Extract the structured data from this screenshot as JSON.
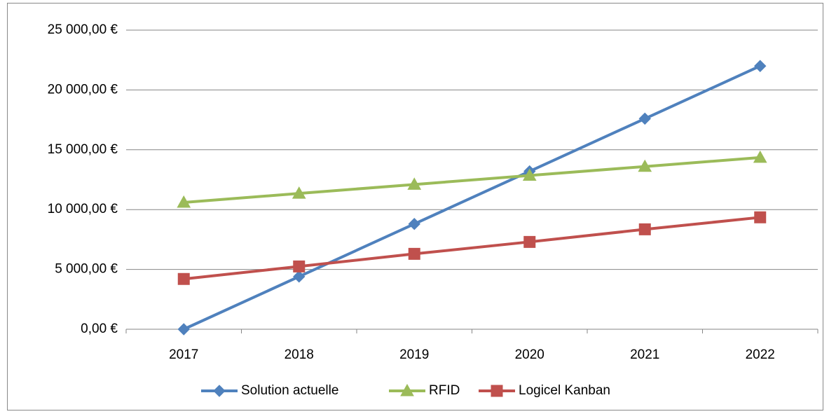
{
  "chart_data": {
    "type": "line",
    "categories": [
      "2017",
      "2018",
      "2019",
      "2020",
      "2021",
      "2022"
    ],
    "series": [
      {
        "name": "Solution actuelle",
        "color": "#4f81bd",
        "marker": "diamond",
        "values": [
          0,
          4400,
          8800,
          13200,
          17600,
          22000
        ]
      },
      {
        "name": "RFID",
        "color": "#9bbb59",
        "marker": "triangle",
        "values": [
          10600,
          11350,
          12100,
          12850,
          13600,
          14350
        ]
      },
      {
        "name": "Logicel Kanban",
        "color": "#c0504d",
        "marker": "square",
        "values": [
          4200,
          5250,
          6300,
          7300,
          8350,
          9350
        ]
      }
    ],
    "ylim": [
      0,
      25000
    ],
    "yticks": [
      {
        "value": 0,
        "label": "0,00 €"
      },
      {
        "value": 5000,
        "label": "5 000,00 €"
      },
      {
        "value": 10000,
        "label": "10 000,00 €"
      },
      {
        "value": 15000,
        "label": "15 000,00 €"
      },
      {
        "value": 20000,
        "label": "20 000,00 €"
      },
      {
        "value": 25000,
        "label": "25 000,00 €"
      }
    ],
    "grid": true,
    "legend": "bottom"
  }
}
